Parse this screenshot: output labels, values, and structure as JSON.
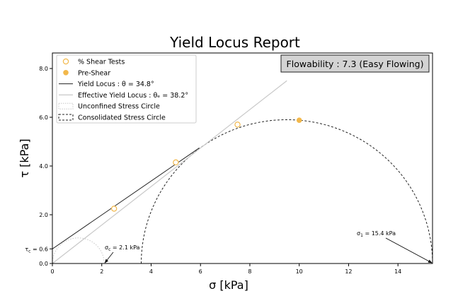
{
  "chart_data": {
    "type": "scatter",
    "title": "Yield Locus Report",
    "xlabel": "σ [kPa]",
    "ylabel": "τ [kPa]",
    "xlim": [
      0,
      15.4
    ],
    "ylim": [
      0,
      8.0
    ],
    "x_ticks": [
      0,
      2,
      4,
      6,
      8,
      10,
      12,
      14
    ],
    "y_ticks": [
      0.0,
      2.0,
      4.0,
      6.0,
      8.0
    ],
    "grid": false,
    "legend_position": "top-left",
    "flowability_text": "Flowability : 7.3 (Easy Flowing)",
    "colors": {
      "shear_points": "#f2b84b",
      "pre_shear": "#f2b84b",
      "yield_locus": "#222222",
      "effective_yield_locus": "#c8c8c8",
      "unconfined_circle": "#c8c8c8",
      "consolidated_circle": "#222222",
      "flowability_box_bg": "#d3d3d3"
    },
    "legend": [
      {
        "key": "shear",
        "label": "% Shear Tests"
      },
      {
        "key": "pre",
        "label": "Pre-Shear"
      },
      {
        "key": "yl",
        "label": "Yield Locus : θ = 34.8°"
      },
      {
        "key": "eyl",
        "label": "Effective Yield Locus : θₑ = 38.2°"
      },
      {
        "key": "ucs",
        "label": "Unconfined Stress Circle"
      },
      {
        "key": "css",
        "label": "Consolidated Stress Circle"
      }
    ],
    "series": [
      {
        "name": "% Shear Tests",
        "type": "scatter",
        "points": [
          [
            2.5,
            2.25
          ],
          [
            5.0,
            4.15
          ],
          [
            7.5,
            5.7
          ]
        ]
      },
      {
        "name": "Pre-Shear",
        "type": "scatter",
        "points": [
          [
            10.0,
            5.88
          ]
        ]
      },
      {
        "name": "Yield Locus : θ = 34.8°",
        "type": "line",
        "points": [
          [
            0,
            0.6
          ],
          [
            5.95,
            4.74
          ]
        ]
      },
      {
        "name": "Effective Yield Locus : θₑ = 38.2°",
        "type": "line",
        "points": [
          [
            0,
            0
          ],
          [
            9.5,
            7.5
          ]
        ]
      },
      {
        "name": "Unconfined Stress Circle",
        "type": "circle",
        "center": 1.05,
        "radius": 1.05
      },
      {
        "name": "Consolidated Stress Circle",
        "type": "circle",
        "center": 9.5,
        "radius": 5.9
      }
    ],
    "annotations": [
      {
        "key": "tau_c",
        "text": "τc = 0.6",
        "x": 0,
        "y": 0.6
      },
      {
        "key": "sigma_c",
        "text": "σc = 2.1 kPa",
        "x": 2.1,
        "y": 0
      },
      {
        "key": "sigma_1",
        "text": "σ1 = 15.4 kPa",
        "x": 15.4,
        "y": 0
      }
    ]
  }
}
